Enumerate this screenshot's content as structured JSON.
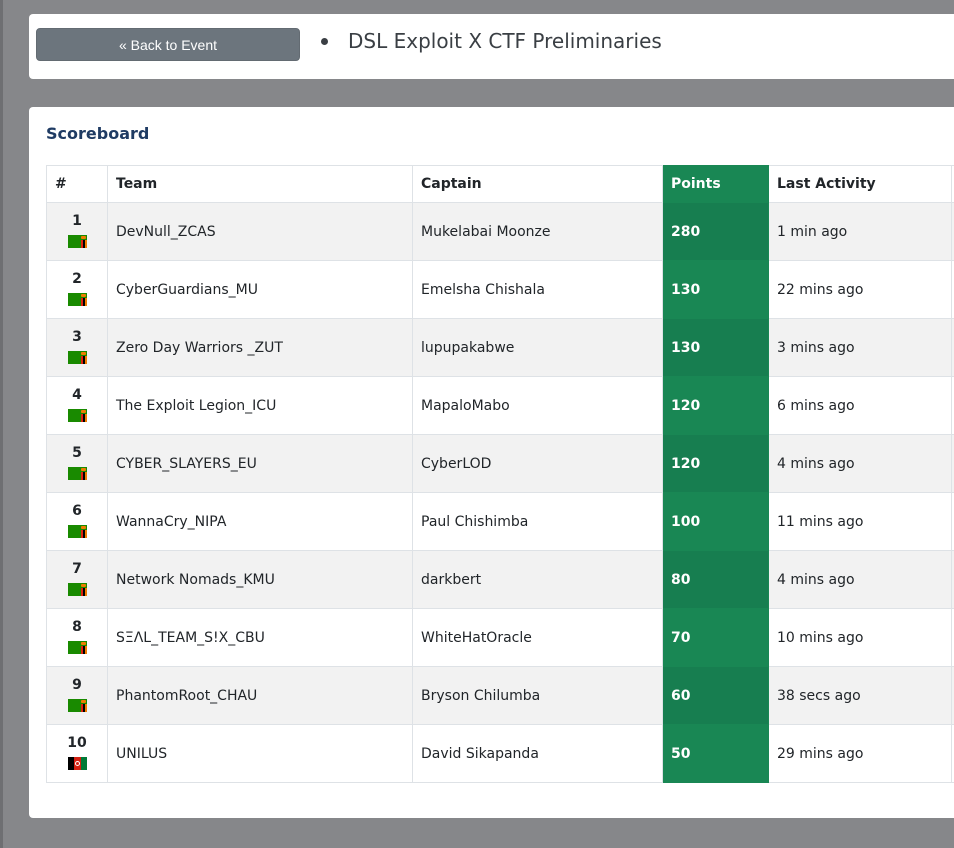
{
  "header": {
    "back_label": "« Back to Event",
    "event_title": "DSL Exploit X CTF Preliminaries"
  },
  "scoreboard": {
    "title": "Scoreboard",
    "columns": {
      "rank": "#",
      "team": "Team",
      "captain": "Captain",
      "points": "Points",
      "last_activity": "Last Activity"
    },
    "rows": [
      {
        "rank": "1",
        "flag": "zambia-flag-icon",
        "team": "DevNull_ZCAS",
        "captain": "Mukelabai Moonze",
        "points": "280",
        "last_activity": "1 min ago"
      },
      {
        "rank": "2",
        "flag": "zambia-flag-icon",
        "team": "CyberGuardians_MU",
        "captain": "Emelsha Chishala",
        "points": "130",
        "last_activity": "22 mins ago"
      },
      {
        "rank": "3",
        "flag": "zambia-flag-icon",
        "team": "Zero Day Warriors _ZUT",
        "captain": "lupupakabwe",
        "points": "130",
        "last_activity": "3 mins ago"
      },
      {
        "rank": "4",
        "flag": "zambia-flag-icon",
        "team": "The Exploit Legion_ICU",
        "captain": "MapaloMabo",
        "points": "120",
        "last_activity": "6 mins ago"
      },
      {
        "rank": "5",
        "flag": "zambia-flag-icon",
        "team": "CYBER_SLAYERS_EU",
        "captain": "CyberLOD",
        "points": "120",
        "last_activity": "4 mins ago"
      },
      {
        "rank": "6",
        "flag": "zambia-flag-icon",
        "team": "WannaCry_NIPA",
        "captain": "Paul Chishimba",
        "points": "100",
        "last_activity": "11 mins ago"
      },
      {
        "rank": "7",
        "flag": "zambia-flag-icon",
        "team": "Network Nomads_KMU",
        "captain": "darkbert",
        "points": "80",
        "last_activity": "4 mins ago"
      },
      {
        "rank": "8",
        "flag": "zambia-flag-icon",
        "team": "SΞΛL_TEAM_S!X_CBU",
        "captain": "WhiteHatOracle",
        "points": "70",
        "last_activity": "10 mins ago"
      },
      {
        "rank": "9",
        "flag": "zambia-flag-icon",
        "team": "PhantomRoot_CHAU",
        "captain": "Bryson Chilumba",
        "points": "60",
        "last_activity": "38 secs ago"
      },
      {
        "rank": "10",
        "flag": "afghanistan-flag-icon",
        "team": "UNILUS",
        "captain": "David Sikapanda",
        "points": "50",
        "last_activity": "29 mins ago"
      }
    ]
  },
  "colors": {
    "points_accent": "#198754",
    "button_gray": "#6c757d",
    "page_background": "#86878a",
    "title_blue": "#1f3b63"
  }
}
